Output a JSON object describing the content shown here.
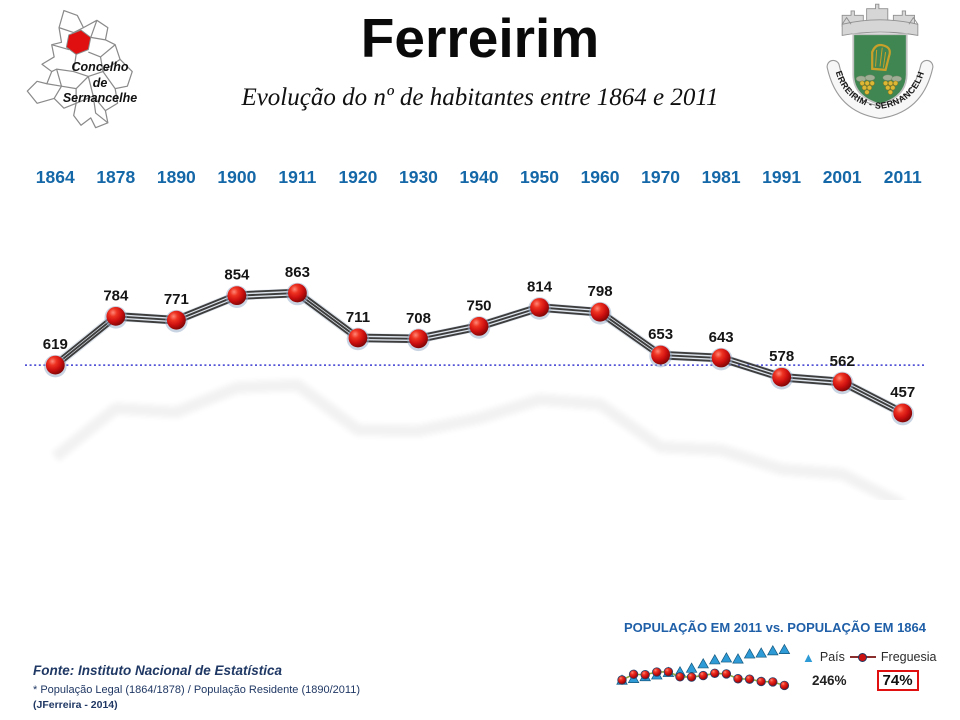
{
  "header": {
    "title": "Ferreirim",
    "subtitle": "Evolução do nº de habitantes entre 1864 e 2011",
    "map_label": "Concelho\nde\nSernancelhe",
    "crest_caption": "FERREIRIM - SERNANCELHE"
  },
  "chart_data": [
    {
      "type": "line",
      "title": "Evolução do nº de habitantes entre 1864 e 2011",
      "categories": [
        "1864",
        "1878",
        "1890",
        "1900",
        "1911",
        "1920",
        "1930",
        "1940",
        "1950",
        "1960",
        "1970",
        "1981",
        "1991",
        "2001",
        "2011"
      ],
      "values": [
        619,
        784,
        771,
        854,
        863,
        711,
        708,
        750,
        814,
        798,
        653,
        643,
        578,
        562,
        457
      ],
      "baseline": 619,
      "xlabel": "",
      "ylabel": "",
      "grid": false,
      "legend": false,
      "marker_color": "#cc1111",
      "tube_color": "#3d3d3d",
      "baseline_color": "#3a3ad0",
      "label_color": "#151515",
      "year_label_color": "#1568A8"
    },
    {
      "type": "line",
      "title": "POPULAÇÃO EM 2011 vs. POPULAÇÃO EM 1864",
      "categories": [
        "1864",
        "1878",
        "1890",
        "1900",
        "1911",
        "1920",
        "1930",
        "1940",
        "1950",
        "1960",
        "1970",
        "1981",
        "1991",
        "2001",
        "2011"
      ],
      "series": [
        {
          "name": "País",
          "marker": "triangle",
          "color": "#2E9BD6",
          "values": [
            100,
            108,
            117,
            125,
            137,
            140,
            157,
            178,
            197,
            206,
            201,
            225,
            229,
            240,
            246
          ],
          "final_label": "246%"
        },
        {
          "name": "Freguesia",
          "marker": "circle",
          "color": "#CC1111",
          "line_color": "#8CA83C",
          "values": [
            100,
            127,
            125,
            138,
            139,
            115,
            114,
            121,
            132,
            129,
            106,
            104,
            93,
            91,
            74
          ],
          "final_label": "74%"
        }
      ],
      "legend_position": "right",
      "grid": false
    }
  ],
  "footer": {
    "source": "Fonte: Instituto Nacional de Estatística",
    "note": "* População Legal (1864/1878) / População Residente (1890/2011)",
    "credit": "(JFerreira - 2014)"
  }
}
